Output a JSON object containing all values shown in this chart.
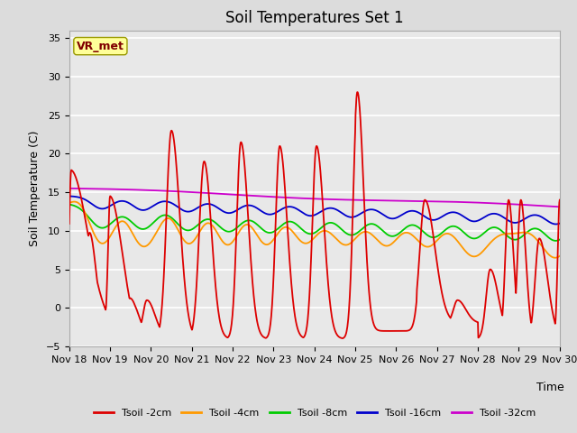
{
  "title": "Soil Temperatures Set 1",
  "xlabel": "Time",
  "ylabel": "Soil Temperature (C)",
  "ylim": [
    -5,
    36
  ],
  "yticks": [
    -5,
    0,
    5,
    10,
    15,
    20,
    25,
    30,
    35
  ],
  "xlim": [
    0,
    12
  ],
  "xtick_labels": [
    "Nov 18",
    "Nov 19",
    "Nov 20",
    "Nov 21",
    "Nov 22",
    "Nov 23",
    "Nov 24",
    "Nov 25",
    "Nov 26",
    "Nov 27",
    "Nov 28",
    "Nov 29",
    "Nov 30"
  ],
  "annotation_text": "VR_met",
  "annotation_color": "#800000",
  "annotation_bg": "#ffff99",
  "legend_labels": [
    "Tsoil -2cm",
    "Tsoil -4cm",
    "Tsoil -8cm",
    "Tsoil -16cm",
    "Tsoil -32cm"
  ],
  "line_colors": [
    "#dd0000",
    "#ff9900",
    "#00cc00",
    "#0000cc",
    "#cc00cc"
  ],
  "bg_color": "#e8e8e8",
  "grid_color": "#ffffff",
  "title_fontsize": 12,
  "label_fontsize": 9,
  "tick_fontsize": 8
}
